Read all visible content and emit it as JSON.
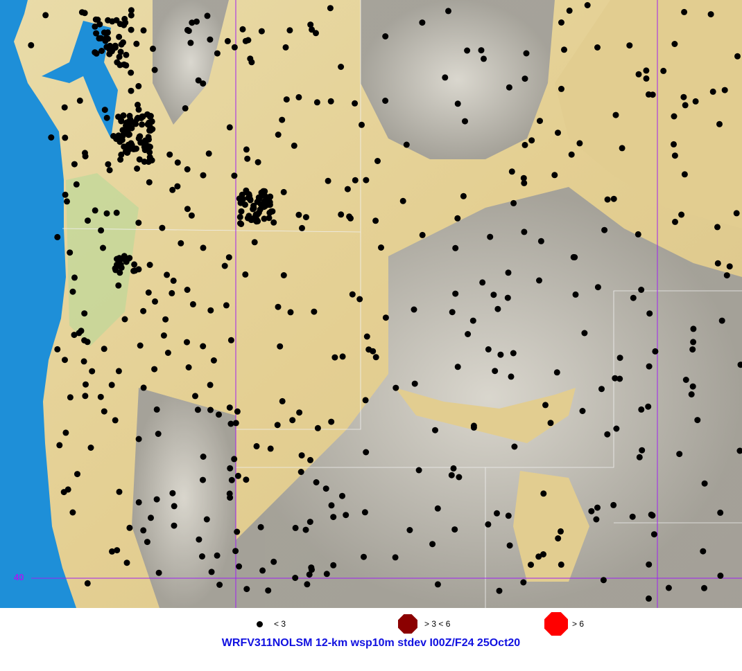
{
  "map": {
    "latitude_label": "40",
    "colors": {
      "ocean": "#1e8fd8",
      "lowland": "#e8d49a",
      "terrain_gray": "#a8a8a8",
      "gridline": "#a020f0",
      "station": "#000000"
    }
  },
  "legend": [
    {
      "label": "< 3",
      "color": "#000000",
      "marker": "small-dot"
    },
    {
      "label": "> 3 < 6",
      "color": "#8b0000",
      "marker": "octagon"
    },
    {
      "label": "> 6",
      "color": "#ff0000",
      "marker": "octagon"
    }
  ],
  "title": "WRFV311NOLSM 12-km wsp10m stdev I00Z/F24 25Oct20"
}
